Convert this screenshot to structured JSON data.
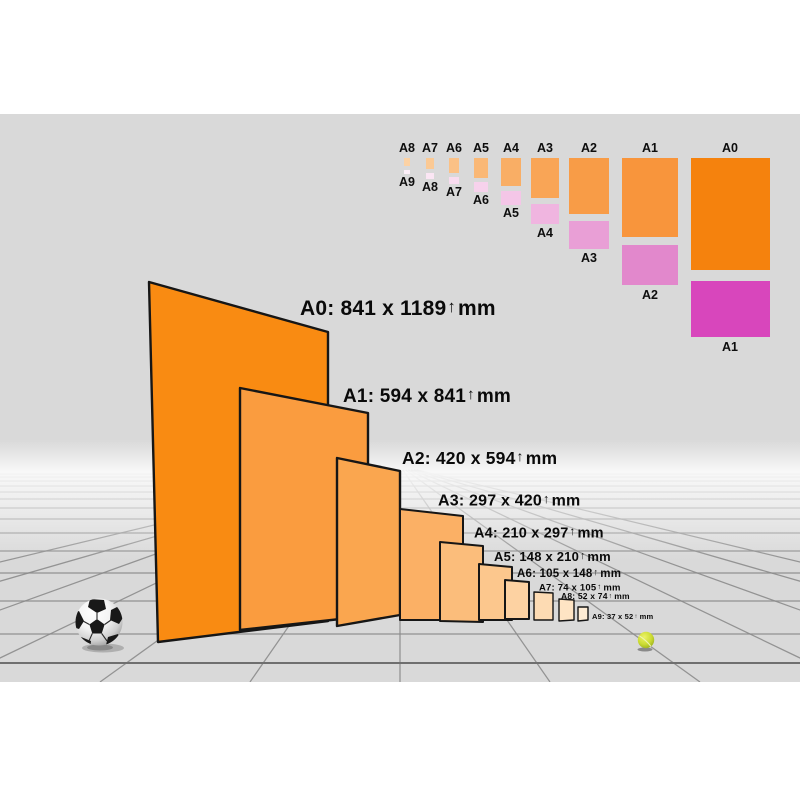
{
  "scene": {
    "stage_color": "#d9d9d9",
    "grid_color": "#8b8b8b",
    "ground_line_color": "#6f6f6f"
  },
  "icons": {
    "up_arrow": "↑"
  },
  "size_labels": [
    {
      "name": "A0",
      "text": "A0: 841 x 1189",
      "unit": "mm"
    },
    {
      "name": "A1",
      "text": "A1: 594 x 841",
      "unit": "mm"
    },
    {
      "name": "A2",
      "text": "A2: 420 x 594",
      "unit": "mm"
    },
    {
      "name": "A3",
      "text": "A3: 297 x 420",
      "unit": "mm"
    },
    {
      "name": "A4",
      "text": "A4: 210 x 297",
      "unit": "mm"
    },
    {
      "name": "A5",
      "text": "A5: 148 x 210",
      "unit": "mm"
    },
    {
      "name": "A6",
      "text": "A6: 105 x 148",
      "unit": "mm"
    },
    {
      "name": "A7",
      "text": "A7: 74 x 105",
      "unit": "mm"
    },
    {
      "name": "A8",
      "text": "A8: 52 x 74",
      "unit": "mm"
    },
    {
      "name": "A9",
      "text": "A9: 37 x 52",
      "unit": "mm"
    }
  ],
  "papers": [
    {
      "name": "A0",
      "color": "#f98b12"
    },
    {
      "name": "A1",
      "color": "#fa9c3f"
    },
    {
      "name": "A2",
      "color": "#faa64f"
    },
    {
      "name": "A3",
      "color": "#fbb065"
    },
    {
      "name": "A4",
      "color": "#fbbd7b"
    },
    {
      "name": "A5",
      "color": "#fcc78d"
    },
    {
      "name": "A6",
      "color": "#fdd2a2"
    },
    {
      "name": "A7",
      "color": "#fddbb3"
    },
    {
      "name": "A8",
      "color": "#fee4c4"
    },
    {
      "name": "A9",
      "color": "#feecd4"
    }
  ],
  "fold_chart": {
    "columns": [
      {
        "top_label": "A8",
        "bottom_label": "A9",
        "orange_color": "#fcd2a4",
        "pink_color": "#fdf0f9"
      },
      {
        "top_label": "A7",
        "bottom_label": "A8",
        "orange_color": "#fbc994",
        "pink_color": "#fbe6f4"
      },
      {
        "top_label": "A6",
        "bottom_label": "A7",
        "orange_color": "#fbc186",
        "pink_color": "#f9dcf0"
      },
      {
        "top_label": "A5",
        "bottom_label": "A6",
        "orange_color": "#fab876",
        "pink_color": "#f7d2ec"
      },
      {
        "top_label": "A4",
        "bottom_label": "A5",
        "orange_color": "#f9ae65",
        "pink_color": "#f4c6e7"
      },
      {
        "top_label": "A3",
        "bottom_label": "A4",
        "orange_color": "#f9a556",
        "pink_color": "#f0b5e0"
      },
      {
        "top_label": "A2",
        "bottom_label": "A3",
        "orange_color": "#f89c47",
        "pink_color": "#e99fd6"
      },
      {
        "top_label": "A1",
        "bottom_label": "A2",
        "orange_color": "#f8953c",
        "pink_color": "#e288cc"
      },
      {
        "top_label": "A0",
        "bottom_label": "A1",
        "orange_color": "#f5820d",
        "pink_color": "#d846bc"
      }
    ]
  }
}
